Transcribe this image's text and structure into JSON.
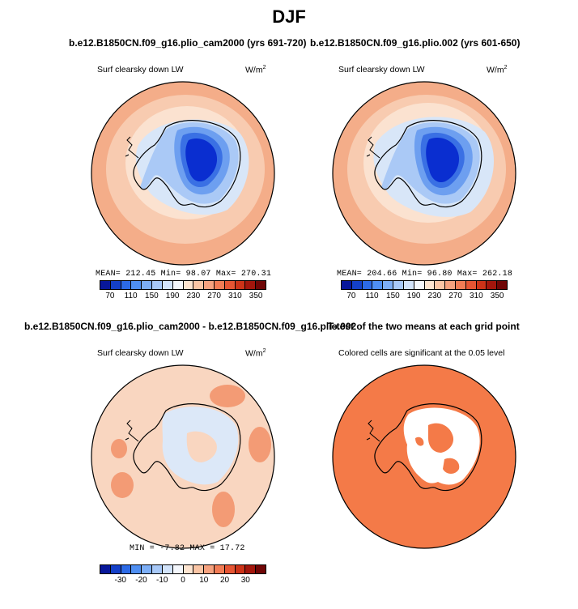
{
  "title": "DJF",
  "panels": {
    "p1": {
      "case": "b.e12.B1850CN.f09_g16.plio_cam2000 (yrs 691-720)",
      "left_title": "Surf clearsky down LW",
      "units_base": "W/m",
      "units_exp": "2",
      "stats": "MEAN= 212.45   Min=  98.07   Max= 270.31",
      "mean": 212.45,
      "min": 98.07,
      "max": 270.31
    },
    "p2": {
      "case": "b.e12.B1850CN.f09_g16.plio.002 (yrs 601-650)",
      "left_title": "Surf clearsky down LW",
      "units_base": "W/m",
      "units_exp": "2",
      "stats": "MEAN= 204.66   Min=  96.80   Max= 262.18",
      "mean": 204.66,
      "min": 96.8,
      "max": 262.18
    },
    "p3": {
      "case": "b.e12.B1850CN.f09_g16.plio_cam2000 - b.e12.B1850CN.f09_g16.plio.002",
      "left_title": "Surf clearsky down LW",
      "units_base": "W/m",
      "units_exp": "2",
      "stats": "MIN =  -7.82 MAX =  17.72",
      "min": -7.82,
      "max": 17.72
    },
    "p4": {
      "case": "T-test of the two means at each grid point",
      "left_title": "Colored cells are significant at the 0.05 level"
    }
  },
  "colorbar_abs": {
    "colors": [
      "#08179a",
      "#1440c8",
      "#2c6ae6",
      "#4f8ff2",
      "#7caef6",
      "#a8c9f8",
      "#d2e3fa",
      "#f4f7fc",
      "#fde4d0",
      "#fac5a5",
      "#f6a27f",
      "#f27c55",
      "#e65533",
      "#cc3318",
      "#a3160c",
      "#700606"
    ],
    "labels": [
      "70",
      "110",
      "150",
      "190",
      "230",
      "270",
      "310",
      "350"
    ]
  },
  "colorbar_diff": {
    "colors": [
      "#08179a",
      "#1440c8",
      "#2c6ae6",
      "#4f8ff2",
      "#7caef6",
      "#a8c9f8",
      "#d2e3fa",
      "#f4f7fc",
      "#fde4d0",
      "#fac5a5",
      "#f6a27f",
      "#f27c55",
      "#e65533",
      "#cc3318",
      "#a3160c",
      "#700606"
    ],
    "labels": [
      "-30",
      "-20",
      "-10",
      "0",
      "10",
      "20",
      "30"
    ]
  },
  "map_colors": {
    "ocean_outer": "#f4ad89",
    "ocean_mid": "#f8cbb0",
    "ocean_inner": "#fbe2d0",
    "shelf": "#d8e6f8",
    "ice1": "#aac9f6",
    "ice2": "#6d9ff0",
    "ice3": "#3a70e4",
    "ice4": "#0a2ed0",
    "diff_base": "#f9d6c0",
    "diff_hi": "#f39b75",
    "diff_neg": "#dce8f8",
    "ttest_sig": "#f47a48"
  }
}
